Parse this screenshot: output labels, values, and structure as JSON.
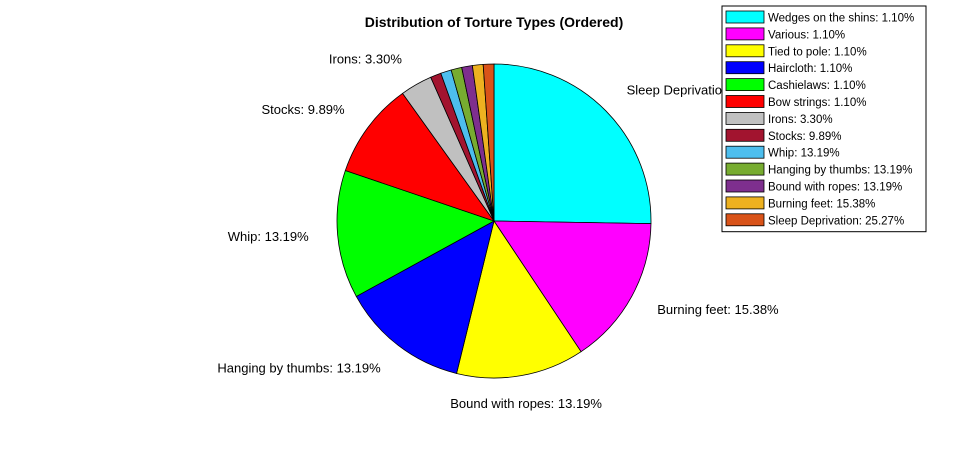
{
  "chart_data": {
    "type": "pie",
    "title": "Distribution of Torture Types (Ordered)",
    "start_angle_deg": 90,
    "direction": "clockwise",
    "slices": [
      {
        "label": "Sleep Deprivation",
        "percent_label": "25.27%",
        "value": 25.27,
        "color": "#00ffff",
        "show_label": true
      },
      {
        "label": "Burning feet",
        "percent_label": "15.38%",
        "value": 15.38,
        "color": "#ff00ff",
        "show_label": true
      },
      {
        "label": "Bound with ropes",
        "percent_label": "13.19%",
        "value": 13.19,
        "color": "#ffff00",
        "show_label": true
      },
      {
        "label": "Hanging by thumbs",
        "percent_label": "13.19%",
        "value": 13.19,
        "color": "#0000ff",
        "show_label": true
      },
      {
        "label": "Whip",
        "percent_label": "13.19%",
        "value": 13.19,
        "color": "#00ff00",
        "show_label": true
      },
      {
        "label": "Stocks",
        "percent_label": "9.89%",
        "value": 9.89,
        "color": "#ff0000",
        "show_label": true
      },
      {
        "label": "Irons",
        "percent_label": "3.30%",
        "value": 3.3,
        "color": "#c0c0c0",
        "show_label": true
      },
      {
        "label": "Bow strings",
        "percent_label": "1.10%",
        "value": 1.1,
        "color": "#a2142f",
        "show_label": false
      },
      {
        "label": "Cashielaws",
        "percent_label": "1.10%",
        "value": 1.1,
        "color": "#4dbeee",
        "show_label": false
      },
      {
        "label": "Haircloth",
        "percent_label": "1.10%",
        "value": 1.1,
        "color": "#77ac30",
        "show_label": false
      },
      {
        "label": "Tied to pole",
        "percent_label": "1.10%",
        "value": 1.1,
        "color": "#7e2f8e",
        "show_label": false
      },
      {
        "label": "Various",
        "percent_label": "1.10%",
        "value": 1.1,
        "color": "#edb120",
        "show_label": false
      },
      {
        "label": "Wedges on the shins",
        "percent_label": "1.10%",
        "value": 1.1,
        "color": "#d95319",
        "show_label": false
      }
    ],
    "legend": {
      "placement": "top-right",
      "entries": [
        {
          "text": "Wedges on the shins: 1.10%",
          "color": "#00ffff"
        },
        {
          "text": "Various: 1.10%",
          "color": "#ff00ff"
        },
        {
          "text": "Tied to pole: 1.10%",
          "color": "#ffff00"
        },
        {
          "text": "Haircloth: 1.10%",
          "color": "#0000ff"
        },
        {
          "text": "Cashielaws: 1.10%",
          "color": "#00ff00"
        },
        {
          "text": "Bow strings: 1.10%",
          "color": "#ff0000"
        },
        {
          "text": "Irons: 3.30%",
          "color": "#c0c0c0"
        },
        {
          "text": "Stocks: 9.89%",
          "color": "#a2142f"
        },
        {
          "text": "Whip: 13.19%",
          "color": "#4dbeee"
        },
        {
          "text": "Hanging by thumbs: 13.19%",
          "color": "#77ac30"
        },
        {
          "text": "Bound with ropes: 13.19%",
          "color": "#7e2f8e"
        },
        {
          "text": "Burning feet: 15.38%",
          "color": "#edb120"
        },
        {
          "text": "Sleep Deprivation: 25.27%",
          "color": "#d95319"
        }
      ]
    }
  }
}
